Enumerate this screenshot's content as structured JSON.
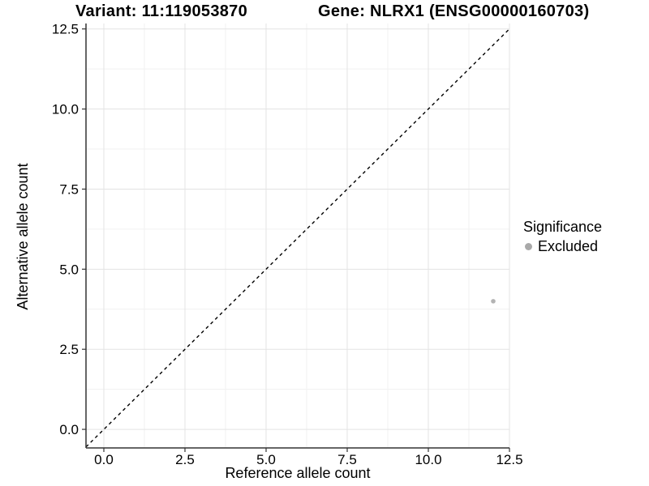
{
  "header": {
    "variant_label": "Variant: 11:119053870",
    "gene_label": "Gene: NLRX1 (ENSG00000160703)"
  },
  "chart_data": {
    "type": "scatter",
    "title": "Variant: 11:119053870    Gene: NLRX1 (ENSG00000160703)",
    "xlabel": "Reference allele count",
    "ylabel": "Alternative allele count",
    "xlim": [
      -0.55,
      12.5
    ],
    "ylim": [
      -0.58,
      12.67
    ],
    "x_ticks": {
      "values": [
        0,
        2.5,
        5,
        7.5,
        10,
        12.5
      ],
      "labels": [
        "0.0",
        "2.5",
        "5.0",
        "7.5",
        "10.0",
        "12.5"
      ]
    },
    "y_ticks": {
      "values": [
        0,
        2.5,
        5,
        7.5,
        10,
        12.5
      ],
      "labels": [
        "0.0",
        "2.5",
        "5.0",
        "7.5",
        "10.0",
        "12.5"
      ]
    },
    "grid": {
      "major": true,
      "minor": true
    },
    "identity_line": {
      "style": "dashed",
      "color": "#000000",
      "from": -0.55,
      "to": 12.5
    },
    "series": [
      {
        "name": "Excluded",
        "marker": "circle",
        "color": "#b3b3b3",
        "points": [
          [
            12,
            4
          ]
        ]
      }
    ],
    "legend": {
      "position": "right",
      "title": "Significance",
      "entries": [
        {
          "label": "Excluded",
          "color": "#a9a9a9"
        }
      ]
    },
    "style": {
      "background": "#ffffff",
      "grid_major_color": "#e3e3e3",
      "grid_minor_color": "#f1f1f1",
      "axis_color": "#333333",
      "text_color": "#000000"
    }
  }
}
